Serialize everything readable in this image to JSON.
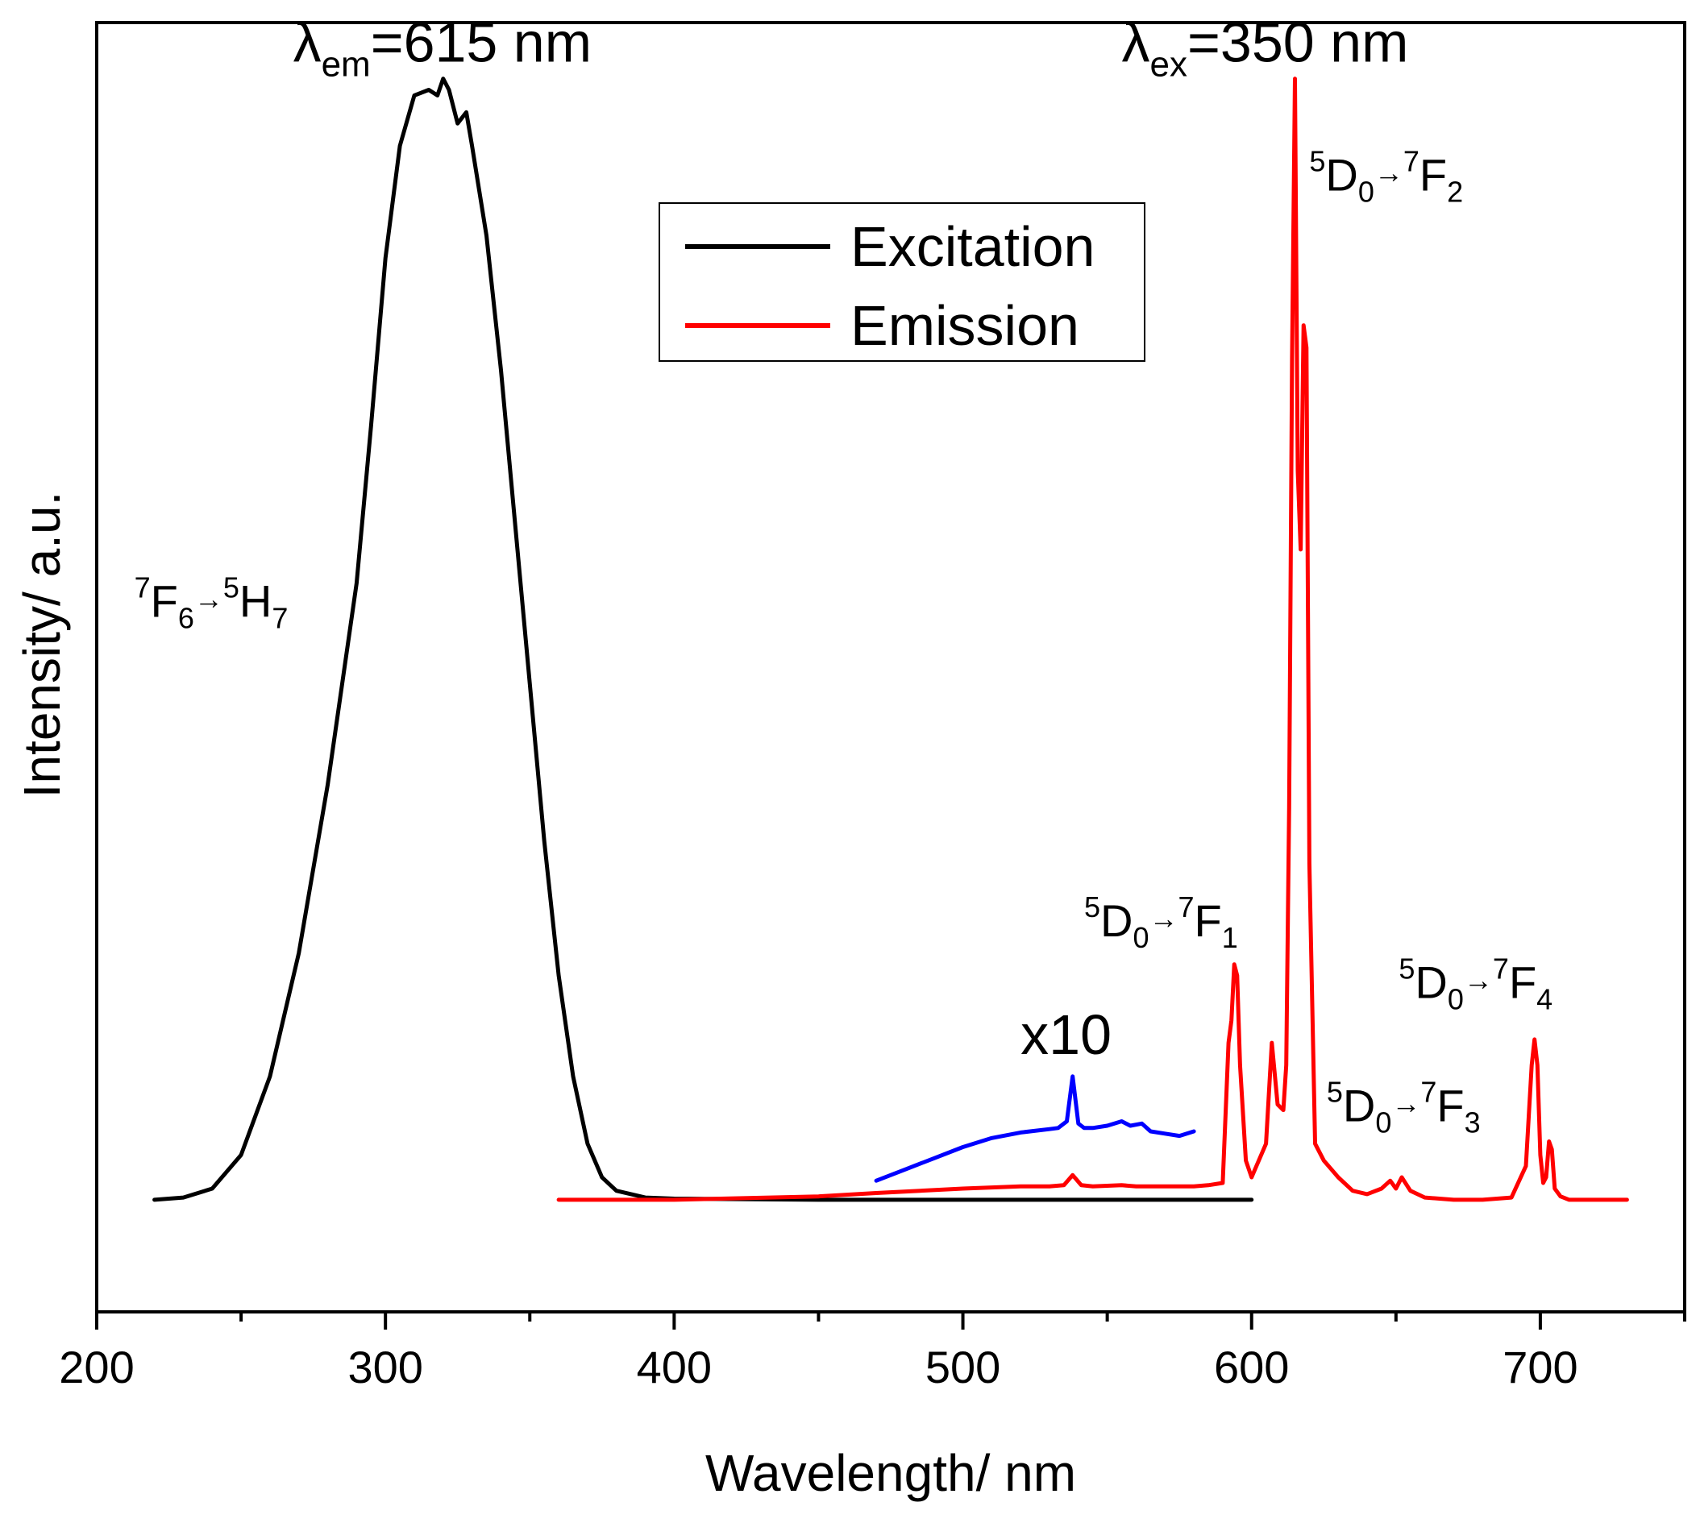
{
  "chart_data": {
    "type": "line",
    "xlabel": "Wavelength/ nm",
    "ylabel": "Intensity/ a.u.",
    "xlim": [
      200,
      750
    ],
    "ylim": [
      -0.1,
      1.05
    ],
    "x_ticks": [
      200,
      300,
      400,
      500,
      600,
      700
    ],
    "x_minor_ticks": [
      250,
      350,
      450,
      550,
      650,
      750
    ],
    "y_ticks_shown": false,
    "legend": {
      "position": "top-center",
      "entries": [
        {
          "label": "Excitation",
          "color": "#000000"
        },
        {
          "label": "Emission",
          "color": "#ff0000"
        }
      ]
    },
    "series": [
      {
        "name": "Excitation",
        "color": "#000000",
        "x": [
          220,
          230,
          240,
          250,
          260,
          270,
          280,
          290,
          295,
          300,
          305,
          310,
          315,
          318,
          320,
          322,
          325,
          328,
          330,
          335,
          340,
          345,
          350,
          355,
          360,
          365,
          370,
          375,
          380,
          390,
          400,
          450,
          500,
          550,
          600
        ],
        "y": [
          0.0,
          0.002,
          0.01,
          0.04,
          0.11,
          0.22,
          0.37,
          0.55,
          0.69,
          0.84,
          0.94,
          0.985,
          0.99,
          0.985,
          1.0,
          0.99,
          0.96,
          0.97,
          0.94,
          0.86,
          0.74,
          0.6,
          0.46,
          0.32,
          0.2,
          0.11,
          0.05,
          0.02,
          0.008,
          0.002,
          0.001,
          0.0,
          0.0,
          0.0,
          0.0
        ]
      },
      {
        "name": "Emission",
        "color": "#ff0000",
        "x": [
          360,
          400,
          450,
          470,
          500,
          520,
          530,
          535,
          538,
          541,
          545,
          555,
          560,
          570,
          580,
          585,
          590,
          592,
          593,
          594,
          595,
          596,
          598,
          600,
          605,
          607,
          609,
          611,
          612,
          613,
          614,
          615,
          616,
          617,
          618,
          619,
          620,
          622,
          625,
          630,
          635,
          640,
          645,
          648,
          650,
          652,
          655,
          660,
          670,
          680,
          690,
          695,
          697,
          698,
          699,
          700,
          701,
          702,
          703,
          704,
          705,
          707,
          710,
          720,
          730
        ],
        "y": [
          0.0,
          0.0,
          0.003,
          0.006,
          0.01,
          0.012,
          0.012,
          0.013,
          0.022,
          0.013,
          0.012,
          0.013,
          0.012,
          0.012,
          0.012,
          0.013,
          0.015,
          0.14,
          0.16,
          0.21,
          0.2,
          0.12,
          0.035,
          0.02,
          0.05,
          0.14,
          0.085,
          0.08,
          0.12,
          0.35,
          0.75,
          1.0,
          0.65,
          0.58,
          0.78,
          0.76,
          0.3,
          0.05,
          0.035,
          0.02,
          0.008,
          0.005,
          0.01,
          0.017,
          0.01,
          0.02,
          0.008,
          0.002,
          0.0,
          0.0,
          0.002,
          0.03,
          0.12,
          0.143,
          0.12,
          0.04,
          0.015,
          0.02,
          0.052,
          0.045,
          0.01,
          0.003,
          0.0,
          0.0,
          0.0
        ]
      },
      {
        "name": "x10",
        "color": "#0000ff",
        "x": [
          470,
          480,
          490,
          500,
          510,
          520,
          530,
          533,
          536,
          538,
          540,
          542,
          545,
          550,
          555,
          558,
          562,
          565,
          570,
          575,
          580
        ],
        "y": [
          0.017,
          0.027,
          0.037,
          0.047,
          0.055,
          0.06,
          0.063,
          0.064,
          0.07,
          0.11,
          0.068,
          0.064,
          0.064,
          0.066,
          0.07,
          0.066,
          0.068,
          0.061,
          0.059,
          0.057,
          0.061
        ]
      }
    ],
    "annotations": [
      {
        "text": "λ",
        "sub": "em",
        "rest": "=615 nm",
        "x": 268,
        "y": 1.015
      },
      {
        "text": "λ",
        "sub": "ex",
        "rest": "=350 nm",
        "x": 555,
        "y": 1.015
      },
      {
        "sup1": "7",
        "base1": "F",
        "sub1": "6",
        "arrow": "→",
        "sup2": "5",
        "base2": "H",
        "sub2": "7",
        "x": 213,
        "y": 0.52
      },
      {
        "sup1": "5",
        "base1": "D",
        "sub1": "0",
        "arrow": "→",
        "sup2": "7",
        "base2": "F",
        "sub2": "2",
        "x": 620,
        "y": 0.9
      },
      {
        "sup1": "5",
        "base1": "D",
        "sub1": "0",
        "arrow": "→",
        "sup2": "7",
        "base2": "F",
        "sub2": "1",
        "x": 542,
        "y": 0.235
      },
      {
        "sup1": "5",
        "base1": "D",
        "sub1": "0",
        "arrow": "→",
        "sup2": "7",
        "base2": "F",
        "sub2": "4",
        "x": 651,
        "y": 0.18
      },
      {
        "sup1": "5",
        "base1": "D",
        "sub1": "0",
        "arrow": "→",
        "sup2": "7",
        "base2": "F",
        "sub2": "3",
        "x": 626,
        "y": 0.07
      },
      {
        "text": "x10",
        "x": 520,
        "y": 0.13
      }
    ]
  }
}
